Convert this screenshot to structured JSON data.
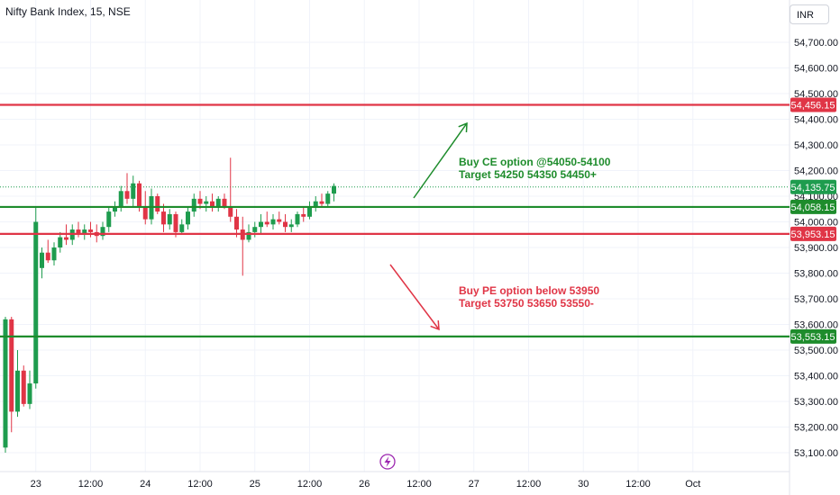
{
  "header": {
    "symbol_title": "Nifty Bank Index, 15, NSE",
    "currency": "INR"
  },
  "colors": {
    "up": "#1e9c4e",
    "down": "#e03546",
    "green_line": "#1e8c2c",
    "red_line": "#e03546",
    "grid": "#f0f3fa",
    "axis_text": "#131722",
    "current_tag": "#1e9c4e"
  },
  "annotations": {
    "ce": {
      "line1": "Buy CE option @54050-54100",
      "line2": "Target 54250 54350 54450+"
    },
    "pe": {
      "line1": "Buy PE option below 53950",
      "line2": "Target 53750 53650 53550-"
    }
  },
  "event_icon": "lightning-icon",
  "chart_data": {
    "type": "candlestick",
    "title": "Nifty Bank Index, 15, NSE",
    "ylim": [
      53050,
      54800
    ],
    "y_ticks": [
      {
        "value": 54700,
        "label": "54,700.00"
      },
      {
        "value": 54600,
        "label": "54,600.00"
      },
      {
        "value": 54500,
        "label": "54,500.00"
      },
      {
        "value": 54400,
        "label": "54,400.00"
      },
      {
        "value": 54300,
        "label": "54,300.00"
      },
      {
        "value": 54200,
        "label": "54,200.00"
      },
      {
        "value": 54100,
        "label": "54,100.00"
      },
      {
        "value": 54000,
        "label": "54,000.00"
      },
      {
        "value": 53900,
        "label": "53,900.00"
      },
      {
        "value": 53800,
        "label": "53,800.00"
      },
      {
        "value": 53700,
        "label": "53,700.00"
      },
      {
        "value": 53600,
        "label": "53,600.00"
      },
      {
        "value": 53500,
        "label": "53,500.00"
      },
      {
        "value": 53400,
        "label": "53,400.00"
      },
      {
        "value": 53300,
        "label": "53,300.00"
      },
      {
        "value": 53200,
        "label": "53,200.00"
      },
      {
        "value": 53100,
        "label": "53,100.00"
      }
    ],
    "x_ticks": [
      {
        "index": 5,
        "label": "23"
      },
      {
        "index": 14,
        "label": "12:00"
      },
      {
        "index": 23,
        "label": "24"
      },
      {
        "index": 32,
        "label": "12:00"
      },
      {
        "index": 41,
        "label": "25"
      },
      {
        "index": 50,
        "label": "12:00"
      },
      {
        "index": 59,
        "label": "26"
      },
      {
        "index": 68,
        "label": "12:00"
      },
      {
        "index": 77,
        "label": "27"
      },
      {
        "index": 86,
        "label": "12:00"
      },
      {
        "index": 95,
        "label": "30"
      },
      {
        "index": 104,
        "label": "12:00"
      },
      {
        "index": 113,
        "label": "Oct"
      }
    ],
    "x_slots": 118,
    "horizontal_levels": [
      {
        "value": 54456.15,
        "label": "54,456.15",
        "color": "red"
      },
      {
        "value": 54058.15,
        "label": "54,058.15",
        "color": "green"
      },
      {
        "value": 53953.15,
        "label": "53,953.15",
        "color": "red"
      },
      {
        "value": 53553.15,
        "label": "53,553.15",
        "color": "green"
      }
    ],
    "current_price": {
      "value": 54135.75,
      "label": "54,135.75"
    },
    "candles": [
      {
        "o": 53120,
        "h": 53630,
        "l": 53100,
        "c": 53620
      },
      {
        "o": 53620,
        "h": 53630,
        "l": 53180,
        "c": 53260
      },
      {
        "o": 53260,
        "h": 53500,
        "l": 53240,
        "c": 53420
      },
      {
        "o": 53420,
        "h": 53440,
        "l": 53280,
        "c": 53290
      },
      {
        "o": 53290,
        "h": 53420,
        "l": 53270,
        "c": 53370
      },
      {
        "o": 53370,
        "h": 54060,
        "l": 53350,
        "c": 54000
      },
      {
        "o": 53820,
        "h": 53900,
        "l": 53780,
        "c": 53880
      },
      {
        "o": 53880,
        "h": 53930,
        "l": 53840,
        "c": 53850
      },
      {
        "o": 53850,
        "h": 53920,
        "l": 53830,
        "c": 53900
      },
      {
        "o": 53900,
        "h": 53960,
        "l": 53880,
        "c": 53940
      },
      {
        "o": 53940,
        "h": 53990,
        "l": 53910,
        "c": 53930
      },
      {
        "o": 53930,
        "h": 53990,
        "l": 53910,
        "c": 53970
      },
      {
        "o": 53970,
        "h": 54000,
        "l": 53940,
        "c": 53950
      },
      {
        "o": 53950,
        "h": 53990,
        "l": 53930,
        "c": 53970
      },
      {
        "o": 53970,
        "h": 54000,
        "l": 53940,
        "c": 53960
      },
      {
        "o": 53960,
        "h": 53990,
        "l": 53920,
        "c": 53945
      },
      {
        "o": 53945,
        "h": 54000,
        "l": 53930,
        "c": 53980
      },
      {
        "o": 53980,
        "h": 54060,
        "l": 53960,
        "c": 54040
      },
      {
        "o": 54040,
        "h": 54080,
        "l": 54020,
        "c": 54060
      },
      {
        "o": 54060,
        "h": 54140,
        "l": 54040,
        "c": 54120
      },
      {
        "o": 54120,
        "h": 54190,
        "l": 54070,
        "c": 54090
      },
      {
        "o": 54090,
        "h": 54180,
        "l": 54060,
        "c": 54150
      },
      {
        "o": 54150,
        "h": 54160,
        "l": 54040,
        "c": 54060
      },
      {
        "o": 54060,
        "h": 54120,
        "l": 53990,
        "c": 54010
      },
      {
        "o": 54010,
        "h": 54130,
        "l": 53990,
        "c": 54100
      },
      {
        "o": 54100,
        "h": 54110,
        "l": 54030,
        "c": 54040
      },
      {
        "o": 54040,
        "h": 54070,
        "l": 53960,
        "c": 53990
      },
      {
        "o": 53990,
        "h": 54050,
        "l": 53970,
        "c": 54030
      },
      {
        "o": 54030,
        "h": 54040,
        "l": 53940,
        "c": 53960
      },
      {
        "o": 53960,
        "h": 54010,
        "l": 53950,
        "c": 53990
      },
      {
        "o": 53990,
        "h": 54060,
        "l": 53970,
        "c": 54040
      },
      {
        "o": 54040,
        "h": 54110,
        "l": 54020,
        "c": 54090
      },
      {
        "o": 54090,
        "h": 54120,
        "l": 54050,
        "c": 54070
      },
      {
        "o": 54070,
        "h": 54100,
        "l": 54040,
        "c": 54080
      },
      {
        "o": 54080,
        "h": 54110,
        "l": 54040,
        "c": 54060
      },
      {
        "o": 54060,
        "h": 54100,
        "l": 54040,
        "c": 54090
      },
      {
        "o": 54090,
        "h": 54110,
        "l": 54050,
        "c": 54060
      },
      {
        "o": 54060,
        "h": 54250,
        "l": 54000,
        "c": 54020
      },
      {
        "o": 54020,
        "h": 54050,
        "l": 53940,
        "c": 53970
      },
      {
        "o": 53970,
        "h": 54020,
        "l": 53790,
        "c": 53930
      },
      {
        "o": 53930,
        "h": 53990,
        "l": 53920,
        "c": 53960
      },
      {
        "o": 53960,
        "h": 54000,
        "l": 53940,
        "c": 53980
      },
      {
        "o": 53980,
        "h": 54030,
        "l": 53950,
        "c": 54000
      },
      {
        "o": 54000,
        "h": 54040,
        "l": 53980,
        "c": 53990
      },
      {
        "o": 53990,
        "h": 54030,
        "l": 53970,
        "c": 54010
      },
      {
        "o": 54010,
        "h": 54040,
        "l": 53990,
        "c": 54000
      },
      {
        "o": 54000,
        "h": 54030,
        "l": 53960,
        "c": 53980
      },
      {
        "o": 53980,
        "h": 54010,
        "l": 53960,
        "c": 53990
      },
      {
        "o": 53990,
        "h": 54040,
        "l": 53980,
        "c": 54030
      },
      {
        "o": 54030,
        "h": 54060,
        "l": 54000,
        "c": 54020
      },
      {
        "o": 54020,
        "h": 54080,
        "l": 54010,
        "c": 54060
      },
      {
        "o": 54060,
        "h": 54100,
        "l": 54040,
        "c": 54080
      },
      {
        "o": 54080,
        "h": 54110,
        "l": 54060,
        "c": 54070
      },
      {
        "o": 54070,
        "h": 54120,
        "l": 54060,
        "c": 54110
      },
      {
        "o": 54110,
        "h": 54150,
        "l": 54080,
        "c": 54140
      }
    ]
  }
}
